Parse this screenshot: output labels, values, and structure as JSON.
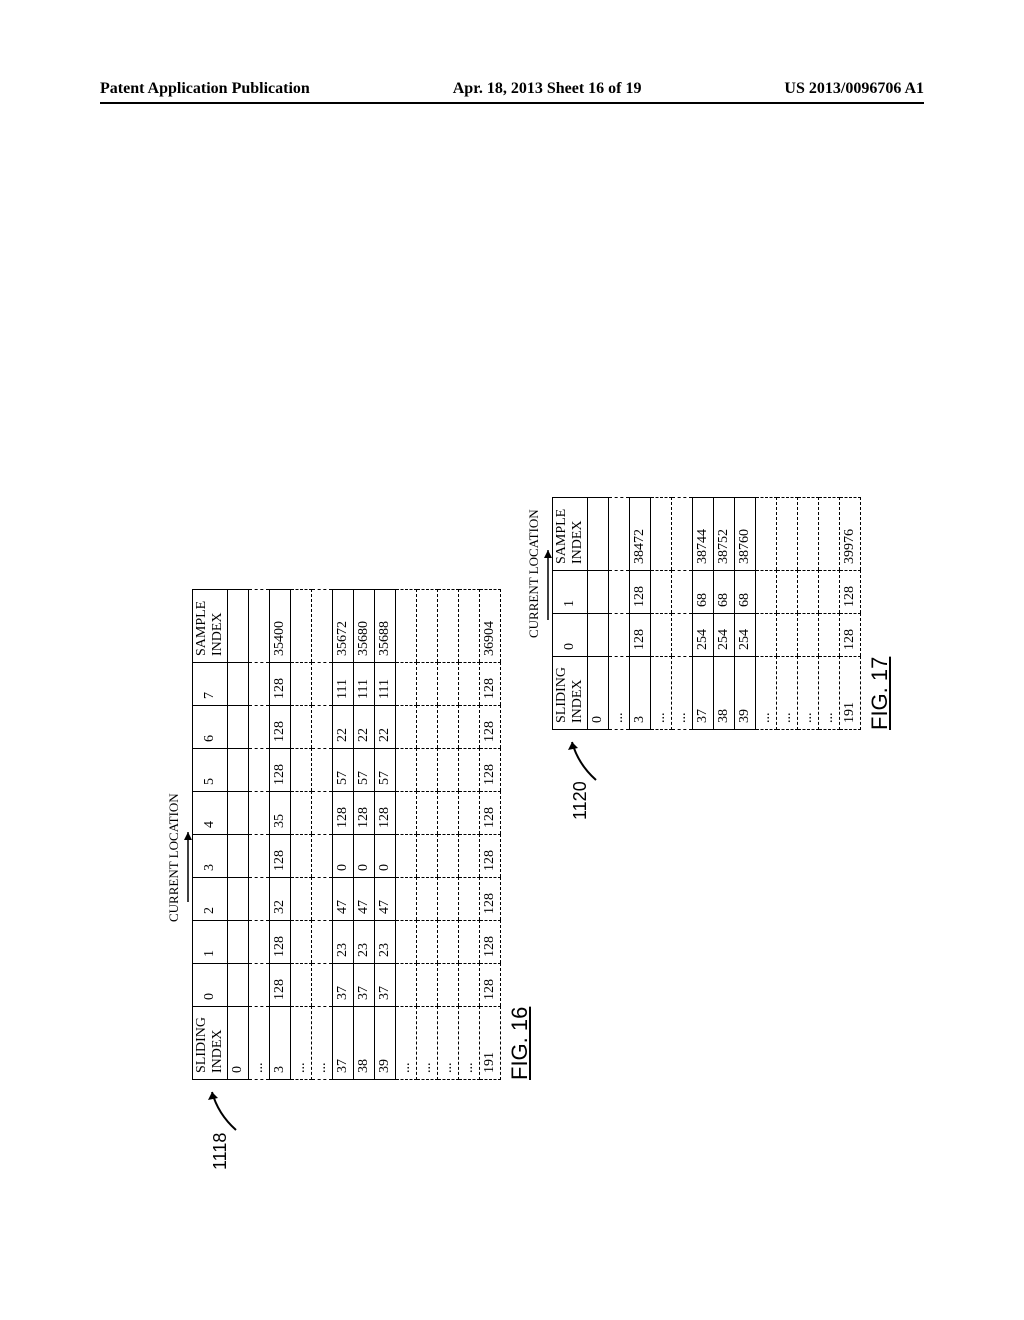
{
  "header": {
    "left": "Patent Application Publication",
    "center": "Apr. 18, 2013  Sheet 16 of 19",
    "right": "US 2013/0096706 A1"
  },
  "fig16": {
    "ref": "1118",
    "loc_label": "CURRENT LOCATION",
    "caption": "FIG. 16",
    "headers": [
      "SLIDING INDEX",
      "0",
      "1",
      "2",
      "3",
      "4",
      "5",
      "6",
      "7",
      "SAMPLE INDEX"
    ],
    "rows": [
      {
        "type": "solid",
        "cells": [
          "0",
          "",
          "",
          "",
          "",
          "",
          "",
          "",
          "",
          ""
        ]
      },
      {
        "type": "dashed",
        "cells": [
          "...",
          "",
          "",
          "",
          "",
          "",
          "",
          "",
          "",
          ""
        ]
      },
      {
        "type": "solid",
        "cells": [
          "3",
          "128",
          "128",
          "32",
          "128",
          "35",
          "128",
          "128",
          "128",
          "35400"
        ]
      },
      {
        "type": "dashed",
        "cells": [
          "...",
          "",
          "",
          "",
          "",
          "",
          "",
          "",
          "",
          ""
        ]
      },
      {
        "type": "dashed",
        "cells": [
          "...",
          "",
          "",
          "",
          "",
          "",
          "",
          "",
          "",
          ""
        ]
      },
      {
        "type": "solid",
        "cells": [
          "37",
          "37",
          "23",
          "47",
          "0",
          "128",
          "57",
          "22",
          "111",
          "35672"
        ]
      },
      {
        "type": "solid",
        "cells": [
          "38",
          "37",
          "23",
          "47",
          "0",
          "128",
          "57",
          "22",
          "111",
          "35680"
        ]
      },
      {
        "type": "solid",
        "cells": [
          "39",
          "37",
          "23",
          "47",
          "0",
          "128",
          "57",
          "22",
          "111",
          "35688"
        ]
      },
      {
        "type": "dashed",
        "cells": [
          "...",
          "",
          "",
          "",
          "",
          "",
          "",
          "",
          "",
          ""
        ]
      },
      {
        "type": "dashed",
        "cells": [
          "...",
          "",
          "",
          "",
          "",
          "",
          "",
          "",
          "",
          ""
        ]
      },
      {
        "type": "dashed",
        "cells": [
          "...",
          "",
          "",
          "",
          "",
          "",
          "",
          "",
          "",
          ""
        ]
      },
      {
        "type": "dashed",
        "cells": [
          "...",
          "",
          "",
          "",
          "",
          "",
          "",
          "",
          "",
          ""
        ]
      },
      {
        "type": "dashed",
        "cells": [
          "191",
          "128",
          "128",
          "128",
          "128",
          "128",
          "128",
          "128",
          "128",
          "36904"
        ]
      }
    ]
  },
  "fig17": {
    "ref": "1120",
    "loc_label": "CURRENT LOCATION",
    "caption": "FIG. 17",
    "headers": [
      "SLIDING INDEX",
      "0",
      "1",
      "SAMPLE INDEX"
    ],
    "rows": [
      {
        "type": "solid",
        "cells": [
          "0",
          "",
          "",
          ""
        ]
      },
      {
        "type": "dashed",
        "cells": [
          "...",
          "",
          "",
          ""
        ]
      },
      {
        "type": "solid",
        "cells": [
          "3",
          "128",
          "128",
          "38472"
        ]
      },
      {
        "type": "dashed",
        "cells": [
          "...",
          "",
          "",
          ""
        ]
      },
      {
        "type": "dashed",
        "cells": [
          "...",
          "",
          "",
          ""
        ]
      },
      {
        "type": "solid",
        "cells": [
          "37",
          "254",
          "68",
          "38744"
        ]
      },
      {
        "type": "solid",
        "cells": [
          "38",
          "254",
          "68",
          "38752"
        ]
      },
      {
        "type": "solid",
        "cells": [
          "39",
          "254",
          "68",
          "38760"
        ]
      },
      {
        "type": "dashed",
        "cells": [
          "...",
          "",
          "",
          ""
        ]
      },
      {
        "type": "dashed",
        "cells": [
          "...",
          "",
          "",
          ""
        ]
      },
      {
        "type": "dashed",
        "cells": [
          "...",
          "",
          "",
          ""
        ]
      },
      {
        "type": "dashed",
        "cells": [
          "...",
          "",
          "",
          ""
        ]
      },
      {
        "type": "dashed",
        "cells": [
          "191",
          "128",
          "128",
          "39976"
        ]
      }
    ]
  }
}
